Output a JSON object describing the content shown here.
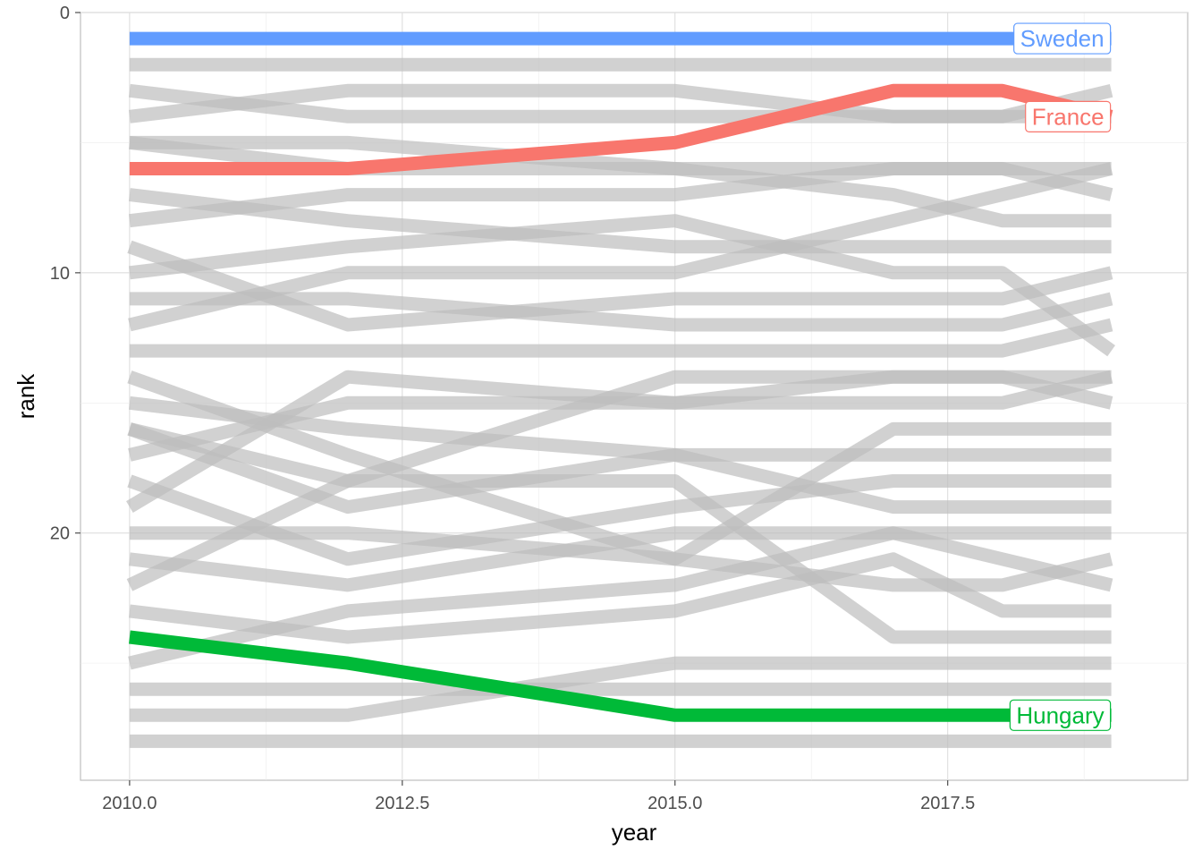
{
  "chart_data": {
    "type": "line",
    "xlabel": "year",
    "ylabel": "rank",
    "xlim": [
      2009.55,
      2019.7
    ],
    "ylim": [
      0,
      29.5
    ],
    "y_reversed": true,
    "x_ticks": [
      2010.0,
      2012.5,
      2015.0,
      2017.5
    ],
    "x_tick_labels": [
      "2010.0",
      "2012.5",
      "2015.0",
      "2017.5"
    ],
    "y_ticks": [
      0,
      10,
      20
    ],
    "y_tick_labels": [
      "0",
      "10",
      "20"
    ],
    "grid": true,
    "years": [
      2010,
      2012,
      2015,
      2017,
      2018,
      2019
    ],
    "highlight_colors": {
      "Sweden": "#619CFF",
      "France": "#F8766D",
      "Hungary": "#00BA38"
    },
    "background_line_color": "#bebebe",
    "series": [
      {
        "name": "Sweden",
        "highlight": true,
        "values": [
          1,
          1,
          1,
          1,
          1,
          1
        ]
      },
      {
        "name": "France",
        "highlight": true,
        "values": [
          6,
          6,
          5,
          3,
          3,
          4
        ]
      },
      {
        "name": "Hungary",
        "highlight": true,
        "values": [
          24,
          25,
          27,
          27,
          27,
          27
        ]
      },
      {
        "values": [
          2,
          2,
          2,
          2,
          2,
          2
        ]
      },
      {
        "values": [
          3,
          4,
          4,
          4,
          4,
          3
        ]
      },
      {
        "values": [
          4,
          3,
          3,
          4,
          4,
          4
        ]
      },
      {
        "values": [
          5,
          5,
          6,
          6,
          6,
          7
        ]
      },
      {
        "values": [
          7,
          8,
          9,
          9,
          9,
          9
        ]
      },
      {
        "values": [
          8,
          7,
          7,
          6,
          6,
          6
        ]
      },
      {
        "values": [
          9,
          12,
          11,
          11,
          11,
          10
        ]
      },
      {
        "values": [
          10,
          9,
          8,
          10,
          10,
          13
        ]
      },
      {
        "values": [
          11,
          11,
          12,
          12,
          12,
          11
        ]
      },
      {
        "values": [
          12,
          10,
          10,
          8,
          7,
          6
        ]
      },
      {
        "values": [
          13,
          13,
          13,
          13,
          13,
          12
        ]
      },
      {
        "values": [
          14,
          17,
          21,
          22,
          22,
          21
        ]
      },
      {
        "values": [
          15,
          16,
          17,
          19,
          19,
          19
        ]
      },
      {
        "values": [
          16,
          19,
          17,
          17,
          17,
          17
        ]
      },
      {
        "values": [
          17,
          15,
          15,
          15,
          15,
          14
        ]
      },
      {
        "values": [
          18,
          21,
          19,
          18,
          18,
          18
        ]
      },
      {
        "values": [
          19,
          14,
          15,
          14,
          14,
          15
        ]
      },
      {
        "values": [
          20,
          20,
          21,
          16,
          16,
          16
        ]
      },
      {
        "values": [
          21,
          22,
          20,
          20,
          21,
          22
        ]
      },
      {
        "values": [
          22,
          18,
          14,
          14,
          14,
          14
        ]
      },
      {
        "values": [
          23,
          24,
          23,
          21,
          23,
          23
        ]
      },
      {
        "values": [
          25,
          23,
          22,
          20,
          20,
          20
        ]
      },
      {
        "values": [
          26,
          26,
          26,
          26,
          26,
          26
        ]
      },
      {
        "values": [
          27,
          27,
          25,
          25,
          25,
          25
        ]
      },
      {
        "values": [
          28,
          28,
          28,
          28,
          28,
          28
        ]
      },
      {
        "values": [
          5,
          6,
          6,
          7,
          8,
          8
        ]
      },
      {
        "values": [
          16,
          18,
          18,
          24,
          24,
          24
        ]
      }
    ]
  }
}
